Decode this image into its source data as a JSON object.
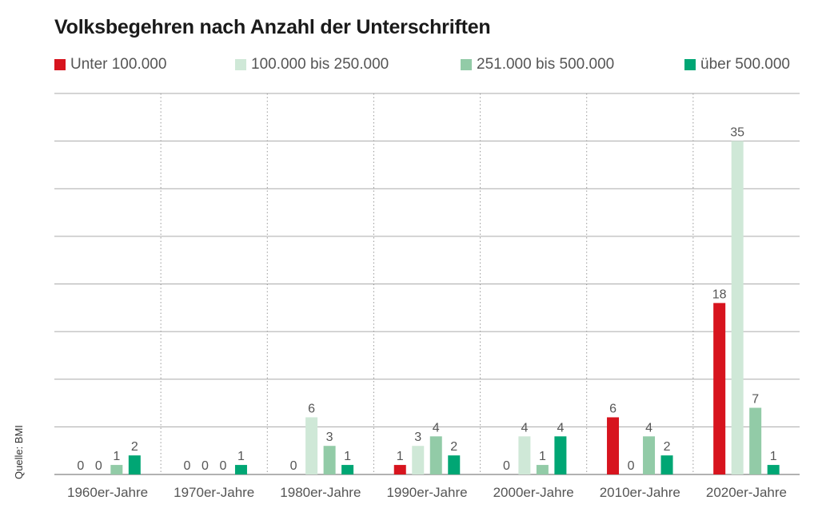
{
  "chart_data": {
    "type": "bar",
    "title": "Volksbegehren nach Anzahl der Unterschriften",
    "source": "Quelle: BMI",
    "categories": [
      "1960er-Jahre",
      "1970er-Jahre",
      "1980er-Jahre",
      "1990er-Jahre",
      "2000er-Jahre",
      "2010er-Jahre",
      "2020er-Jahre"
    ],
    "series": [
      {
        "name": "Unter 100.000",
        "color": "#d7141e",
        "values": [
          0,
          0,
          0,
          1,
          0,
          6,
          18
        ]
      },
      {
        "name": "100.000 bis 250.000",
        "color": "#cfe8d7",
        "values": [
          0,
          0,
          6,
          3,
          4,
          0,
          35
        ]
      },
      {
        "name": "251.000 bis 500.000",
        "color": "#92cba7",
        "values": [
          1,
          0,
          3,
          4,
          1,
          4,
          7
        ]
      },
      {
        "name": "über 500.000",
        "color": "#00a674",
        "values": [
          2,
          1,
          1,
          2,
          4,
          2,
          1
        ]
      }
    ],
    "ylim": [
      0,
      40
    ],
    "grid": true,
    "legend_position": "top",
    "xlabel": "",
    "ylabel": ""
  }
}
